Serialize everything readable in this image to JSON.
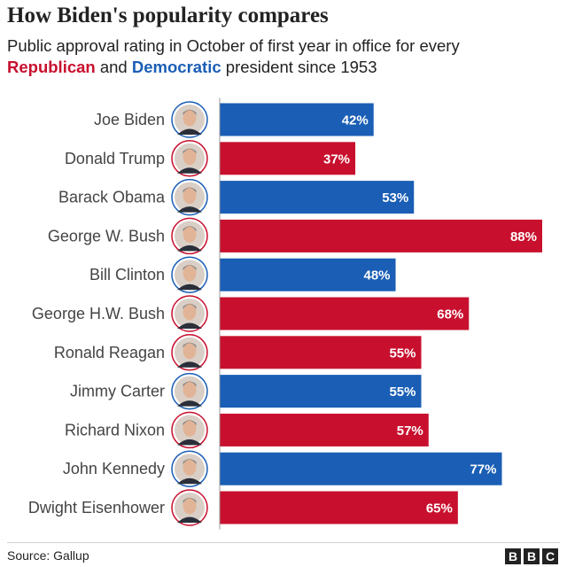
{
  "header": {
    "title": "How Biden's popularity compares",
    "subtitle_pre": "Public approval rating in October of first year in office for every ",
    "subtitle_rep": "Republican",
    "subtitle_mid": " and ",
    "subtitle_dem": "Democratic",
    "subtitle_post": " president since 1953"
  },
  "footer": {
    "source": "Source: Gallup",
    "logo_letters": [
      "B",
      "B",
      "C"
    ]
  },
  "colors": {
    "republican": "#c8102e",
    "democratic": "#1a5eb5",
    "title_text": "#222222",
    "bar_label": "#ffffff"
  },
  "chart_data": {
    "type": "bar",
    "orientation": "horizontal",
    "categories": [
      "Joe Biden",
      "Donald Trump",
      "Barack Obama",
      "George W. Bush",
      "Bill Clinton",
      "George H.W. Bush",
      "Ronald Reagan",
      "Jimmy Carter",
      "Richard Nixon",
      "John Kennedy",
      "Dwight Eisenhower"
    ],
    "values": [
      42,
      37,
      53,
      88,
      48,
      68,
      55,
      55,
      57,
      77,
      65
    ],
    "labels": [
      "42%",
      "37%",
      "53%",
      "88%",
      "48%",
      "68%",
      "55%",
      "55%",
      "57%",
      "77%",
      "65%"
    ],
    "party": [
      "democratic",
      "republican",
      "democratic",
      "republican",
      "democratic",
      "republican",
      "republican",
      "democratic",
      "republican",
      "democratic",
      "republican"
    ],
    "xlim": [
      0,
      88
    ],
    "grid": false,
    "legend": "none"
  }
}
